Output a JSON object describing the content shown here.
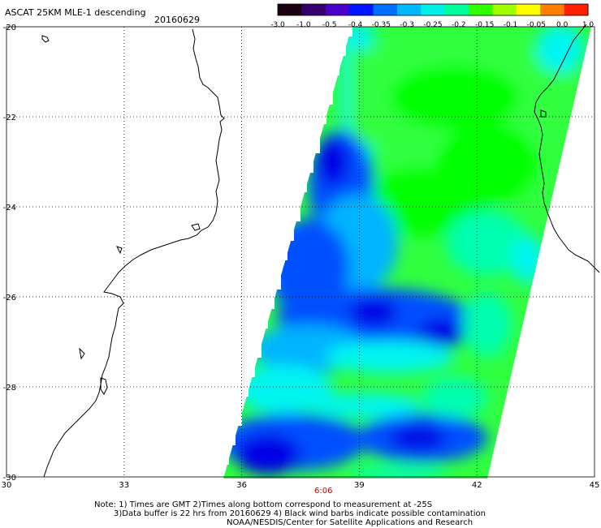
{
  "header": {
    "title": "ASCAT 25KM MLE-1 descending",
    "date": "20160629"
  },
  "colorbar": {
    "labels": [
      "-3.0",
      "-1.0",
      "-0.5",
      "-0.4",
      "-0.35",
      "-0.3",
      "-0.25",
      "-0.2",
      "-0.15",
      "-0.1",
      "-0.05",
      "0.0",
      "1.0"
    ],
    "colors": [
      "#1a0010",
      "#35006e",
      "#4a00c8",
      "#0016ff",
      "#0070ff",
      "#00b8ff",
      "#00f0e8",
      "#00ff9c",
      "#30ff00",
      "#a0ff00",
      "#ffff00",
      "#ff8000",
      "#ff2000"
    ]
  },
  "axes": {
    "lon_ticks": [
      "30",
      "33",
      "36",
      "39",
      "42",
      "45"
    ],
    "lat_ticks": [
      "-20",
      "-22",
      "-24",
      "-26",
      "-28",
      "-30"
    ]
  },
  "annotation": {
    "time": "6:06"
  },
  "notes": {
    "line1": "Note: 1) Times are GMT 2)Times along bottom correspond to measurement at -25S",
    "line2": "3)Data buffer is 22 hrs from 20160629 4) Black wind barbs indicate possible contamination",
    "line3": "NOAA/NESDIS/Center for Satellite Applications and Research"
  },
  "swath_colors": {
    "dark_blue": "#0000e6",
    "blue": "#0050ff",
    "light_blue": "#00b4ff",
    "cyan": "#00f5f0",
    "aqua_green": "#00ffb0",
    "green": "#30ff40",
    "bright_green": "#00ff00"
  }
}
